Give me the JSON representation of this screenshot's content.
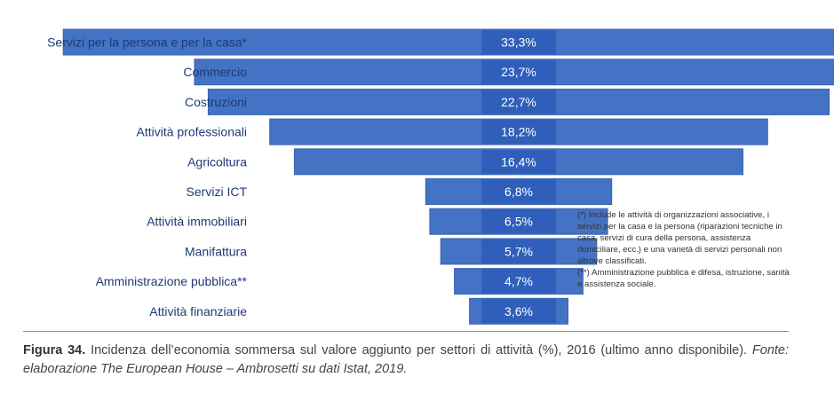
{
  "chart_data": {
    "type": "bar",
    "orientation": "horizontal-centered",
    "categories": [
      "Servizi per la persona e per la casa*",
      "Commercio",
      "Costruzioni",
      "Attività professionali",
      "Agricoltura",
      "Servizi ICT",
      "Attività immobiliari",
      "Manifattura",
      "Amministrazione pubblica**",
      "Attività finanziarie"
    ],
    "values": [
      33.3,
      23.7,
      22.7,
      18.2,
      16.4,
      6.8,
      6.5,
      5.7,
      4.7,
      3.6
    ],
    "value_labels": [
      "33,3%",
      "23,7%",
      "22,7%",
      "18,2%",
      "16,4%",
      "6,8%",
      "6,5%",
      "5,7%",
      "4,7%",
      "3,6%"
    ],
    "bar_color": "#4472c4",
    "label_box_color": "#2f5fba",
    "legend": "none",
    "grid": false
  },
  "footnotes": [
    "(*) Include le attività di organizzazioni associative, i servizi per la casa e la persona (riparazioni tecniche in casa, servizi di cura della persona, assistenza domiciliare, ecc.) e una varietà di servizi personali non altrove classificati.",
    "(**) Amministrazione pubblica e difesa, istruzione, sanità e assistenza sociale."
  ],
  "caption": {
    "figure_label": "Figura 34.",
    "text": "Incidenza dell’economia sommersa sul valore aggiunto per settori di attività (%), 2016 (ultimo anno disponibile).",
    "source": "Fonte: elaborazione The European House – Ambrosetti su dati Istat, 2019."
  }
}
